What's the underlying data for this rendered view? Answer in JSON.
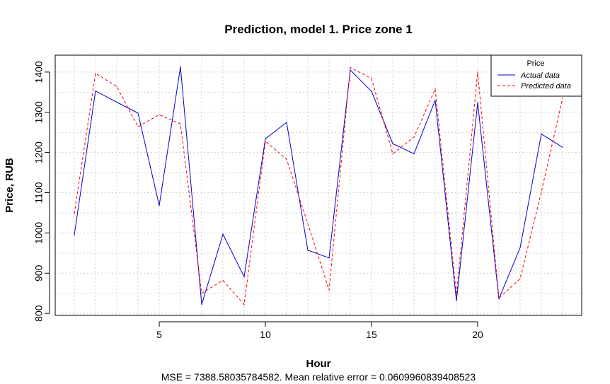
{
  "chart_data": {
    "type": "line",
    "title": "Prediction, model 1. Price zone 1",
    "xlabel": "Hour",
    "ylabel": "Price, RUB",
    "subtitle": "MSE = 7388.58035784582. Mean relative error = 0.0609960839408523",
    "x": [
      1,
      2,
      3,
      4,
      5,
      6,
      7,
      8,
      9,
      10,
      11,
      12,
      13,
      14,
      15,
      16,
      17,
      18,
      19,
      20,
      21,
      22,
      23,
      24
    ],
    "xlim": [
      0.1,
      24.9
    ],
    "ylim": [
      795,
      1442
    ],
    "xticks": [
      5,
      10,
      15,
      20
    ],
    "yticks": [
      800,
      900,
      1000,
      1100,
      1200,
      1300,
      1400
    ],
    "grid": true,
    "series": [
      {
        "name": "Actual data",
        "color": "#0000cc",
        "dash": "solid",
        "values": [
          995,
          1353,
          1325,
          1298,
          1068,
          1413,
          822,
          997,
          891,
          1234,
          1275,
          957,
          938,
          1405,
          1352,
          1222,
          1197,
          1330,
          831,
          1324,
          836,
          963,
          1246,
          1213
        ]
      },
      {
        "name": "Predicted data",
        "color": "#ff0000",
        "dash": "dashed",
        "values": [
          1048,
          1397,
          1364,
          1264,
          1294,
          1271,
          850,
          882,
          822,
          1228,
          1183,
          1023,
          858,
          1411,
          1384,
          1197,
          1238,
          1358,
          846,
          1400,
          838,
          886,
          1102,
          1335
        ]
      }
    ],
    "legend": {
      "title": "Price",
      "position": "top-right"
    }
  }
}
